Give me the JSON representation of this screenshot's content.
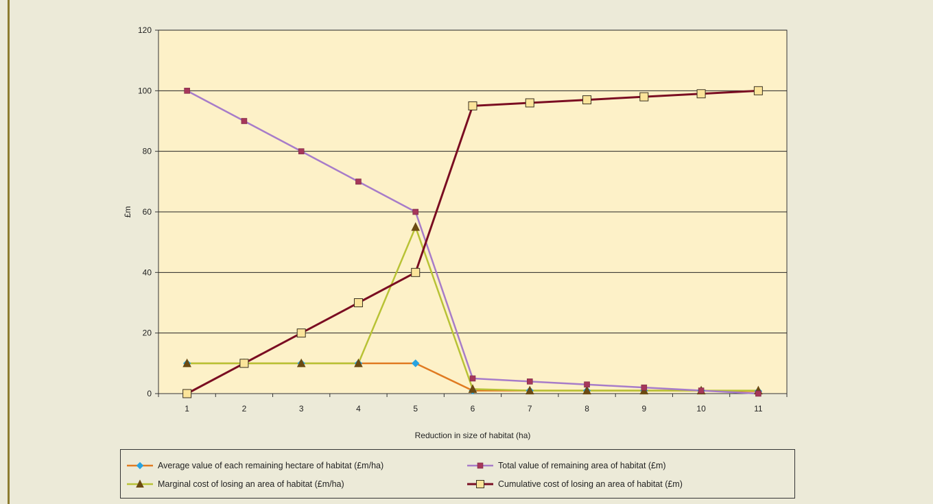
{
  "chart_data": {
    "type": "line",
    "x": [
      1,
      2,
      3,
      4,
      5,
      6,
      7,
      8,
      9,
      10,
      11
    ],
    "xlabel": "Reduction in size of habitat (ha)",
    "ylabel": "£m",
    "ylim": [
      0,
      120
    ],
    "yticks": [
      0,
      20,
      40,
      60,
      80,
      100,
      120
    ],
    "grid": true,
    "legend_position": "bottom",
    "plot_background": "#fdf1c8",
    "series": [
      {
        "name": "Average value of each remaining hectare of habitat (£m/ha)",
        "values": [
          10,
          10,
          10,
          10,
          10,
          1,
          1,
          1,
          1,
          1,
          0.8
        ],
        "line_color": "#e07b22",
        "marker": "diamond",
        "marker_color": "#27a3e0"
      },
      {
        "name": "Total value of remaining area of habitat (£m)",
        "values": [
          100,
          90,
          80,
          70,
          60,
          5,
          4,
          3,
          2,
          1,
          0
        ],
        "line_color": "#a77cc9",
        "marker": "square",
        "marker_color": "#a6375a"
      },
      {
        "name": "Marginal cost of losing an area of habitat (£m/ha)",
        "values": [
          10,
          10,
          10,
          10,
          55,
          1.5,
          1,
          1,
          1,
          1,
          1
        ],
        "line_color": "#b8c235",
        "marker": "triangle",
        "marker_color": "#6b4a12"
      },
      {
        "name": "Cumulative cost of losing an area of habitat (£m)",
        "values": [
          0,
          10,
          20,
          30,
          40,
          95,
          96,
          97,
          98,
          99,
          100
        ],
        "line_color": "#7a0d22",
        "marker": "square-open",
        "marker_color": "#fbe49a"
      }
    ]
  }
}
